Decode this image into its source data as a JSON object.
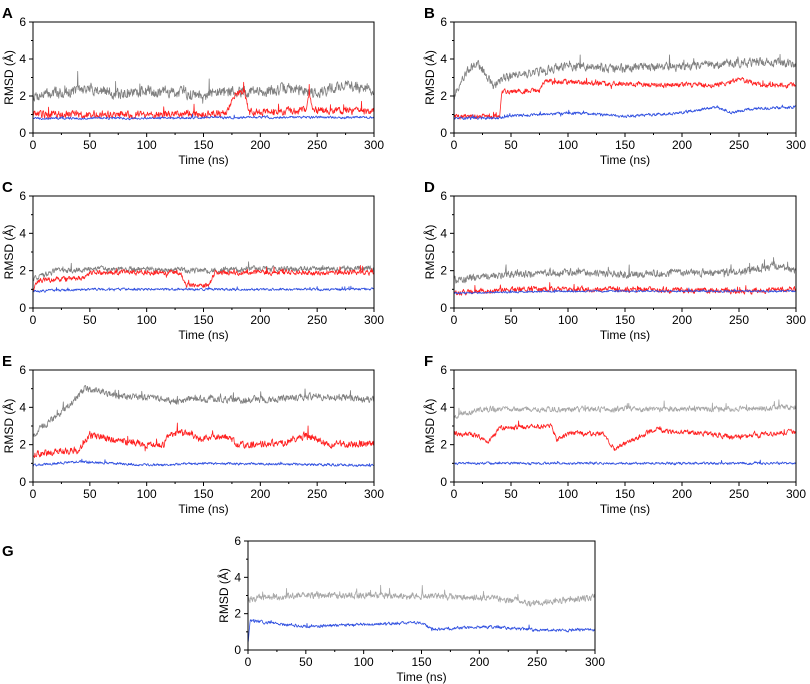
{
  "chart_data": [
    {
      "panel": "A",
      "type": "line",
      "xlabel": "Time (ns)",
      "ylabel": "RMSD (Å)",
      "xlim": [
        0,
        300
      ],
      "ylim": [
        0,
        6
      ],
      "xticks": [
        0,
        50,
        100,
        150,
        200,
        250,
        300
      ],
      "yticks": [
        0,
        2,
        4,
        6
      ],
      "series": [
        {
          "name": "gray",
          "color": "#808080",
          "points": [
            [
              0,
              2.0
            ],
            [
              25,
              2.2
            ],
            [
              50,
              2.4
            ],
            [
              75,
              2.1
            ],
            [
              100,
              2.3
            ],
            [
              125,
              2.2
            ],
            [
              150,
              2.1
            ],
            [
              175,
              2.3
            ],
            [
              200,
              2.2
            ],
            [
              225,
              2.4
            ],
            [
              250,
              2.2
            ],
            [
              275,
              2.6
            ],
            [
              300,
              2.3
            ]
          ],
          "noise": 0.45
        },
        {
          "name": "red",
          "color": "#ff2020",
          "points": [
            [
              0,
              1.0
            ],
            [
              50,
              1.0
            ],
            [
              100,
              1.0
            ],
            [
              170,
              1.05
            ],
            [
              178,
              2.2
            ],
            [
              186,
              2.2
            ],
            [
              190,
              1.1
            ],
            [
              240,
              1.2
            ],
            [
              243,
              2.3
            ],
            [
              246,
              1.2
            ],
            [
              300,
              1.2
            ]
          ],
          "noise": 0.3
        },
        {
          "name": "blue",
          "color": "#3050e0",
          "points": [
            [
              0,
              0.8
            ],
            [
              100,
              0.8
            ],
            [
              200,
              0.85
            ],
            [
              300,
              0.85
            ]
          ],
          "noise": 0.1
        }
      ]
    },
    {
      "panel": "B",
      "type": "line",
      "xlabel": "Time (ns)",
      "ylabel": "RMSD (Å)",
      "xlim": [
        0,
        300
      ],
      "ylim": [
        0,
        6
      ],
      "xticks": [
        0,
        50,
        100,
        150,
        200,
        250,
        300
      ],
      "yticks": [
        0,
        2,
        4,
        6
      ],
      "series": [
        {
          "name": "gray",
          "color": "#808080",
          "points": [
            [
              0,
              2.0
            ],
            [
              10,
              3.2
            ],
            [
              20,
              3.8
            ],
            [
              35,
              2.5
            ],
            [
              45,
              3.0
            ],
            [
              80,
              3.4
            ],
            [
              100,
              3.6
            ],
            [
              150,
              3.5
            ],
            [
              200,
              3.6
            ],
            [
              250,
              3.8
            ],
            [
              275,
              3.8
            ],
            [
              300,
              3.7
            ]
          ],
          "noise": 0.35
        },
        {
          "name": "red",
          "color": "#ff2020",
          "points": [
            [
              0,
              0.9
            ],
            [
              40,
              0.9
            ],
            [
              42,
              2.2
            ],
            [
              75,
              2.3
            ],
            [
              80,
              2.8
            ],
            [
              120,
              2.7
            ],
            [
              175,
              2.6
            ],
            [
              230,
              2.6
            ],
            [
              250,
              2.9
            ],
            [
              275,
              2.5
            ],
            [
              300,
              2.6
            ]
          ],
          "noise": 0.2
        },
        {
          "name": "blue",
          "color": "#3050e0",
          "points": [
            [
              0,
              0.8
            ],
            [
              40,
              0.8
            ],
            [
              45,
              0.9
            ],
            [
              100,
              1.1
            ],
            [
              150,
              0.9
            ],
            [
              200,
              1.1
            ],
            [
              230,
              1.4
            ],
            [
              245,
              1.1
            ],
            [
              260,
              1.3
            ],
            [
              300,
              1.4
            ]
          ],
          "noise": 0.12
        }
      ]
    },
    {
      "panel": "C",
      "type": "line",
      "xlabel": "Time (ns)",
      "ylabel": "RMSD (Å)",
      "xlim": [
        0,
        300
      ],
      "ylim": [
        0,
        6
      ],
      "xticks": [
        0,
        50,
        100,
        150,
        200,
        250,
        300
      ],
      "yticks": [
        0,
        2,
        4,
        6
      ],
      "series": [
        {
          "name": "gray",
          "color": "#808080",
          "points": [
            [
              0,
              1.5
            ],
            [
              20,
              2.0
            ],
            [
              75,
              2.1
            ],
            [
              150,
              2.0
            ],
            [
              200,
              2.1
            ],
            [
              300,
              2.1
            ]
          ],
          "noise": 0.22
        },
        {
          "name": "red",
          "color": "#ff2020",
          "points": [
            [
              0,
              1.0
            ],
            [
              5,
              1.5
            ],
            [
              45,
              1.6
            ],
            [
              50,
              1.9
            ],
            [
              130,
              1.9
            ],
            [
              135,
              1.2
            ],
            [
              155,
              1.2
            ],
            [
              160,
              1.9
            ],
            [
              300,
              1.9
            ]
          ],
          "noise": 0.2
        },
        {
          "name": "blue",
          "color": "#3050e0",
          "points": [
            [
              0,
              0.9
            ],
            [
              50,
              1.0
            ],
            [
              150,
              1.0
            ],
            [
              300,
              1.0
            ]
          ],
          "noise": 0.1
        }
      ]
    },
    {
      "panel": "D",
      "type": "line",
      "xlabel": "Time (ns)",
      "ylabel": "RMSD (Å)",
      "xlim": [
        0,
        300
      ],
      "ylim": [
        0,
        6
      ],
      "xticks": [
        0,
        50,
        100,
        150,
        200,
        250,
        300
      ],
      "yticks": [
        0,
        2,
        4,
        6
      ],
      "series": [
        {
          "name": "gray",
          "color": "#808080",
          "points": [
            [
              0,
              1.5
            ],
            [
              50,
              1.8
            ],
            [
              100,
              1.9
            ],
            [
              150,
              1.8
            ],
            [
              200,
              1.9
            ],
            [
              250,
              1.9
            ],
            [
              280,
              2.3
            ],
            [
              300,
              2.0
            ]
          ],
          "noise": 0.3
        },
        {
          "name": "red",
          "color": "#ff2020",
          "points": [
            [
              0,
              0.8
            ],
            [
              50,
              1.0
            ],
            [
              150,
              1.0
            ],
            [
              250,
              0.9
            ],
            [
              300,
              1.0
            ]
          ],
          "noise": 0.22
        },
        {
          "name": "blue",
          "color": "#3050e0",
          "points": [
            [
              0,
              0.8
            ],
            [
              100,
              0.9
            ],
            [
              200,
              0.9
            ],
            [
              300,
              0.9
            ]
          ],
          "noise": 0.08
        }
      ]
    },
    {
      "panel": "E",
      "type": "line",
      "xlabel": "Time (ns)",
      "ylabel": "RMSD (Å)",
      "xlim": [
        0,
        300
      ],
      "ylim": [
        0,
        6
      ],
      "xticks": [
        0,
        50,
        100,
        150,
        200,
        250,
        300
      ],
      "yticks": [
        0,
        2,
        4,
        6
      ],
      "series": [
        {
          "name": "gray",
          "color": "#808080",
          "points": [
            [
              0,
              2.5
            ],
            [
              20,
              3.5
            ],
            [
              35,
              4.2
            ],
            [
              45,
              5.0
            ],
            [
              70,
              4.7
            ],
            [
              100,
              4.5
            ],
            [
              130,
              4.3
            ],
            [
              140,
              4.5
            ],
            [
              200,
              4.4
            ],
            [
              250,
              4.6
            ],
            [
              300,
              4.4
            ]
          ],
          "noise": 0.28
        },
        {
          "name": "red",
          "color": "#ff2020",
          "points": [
            [
              0,
              1.5
            ],
            [
              40,
              1.7
            ],
            [
              50,
              2.5
            ],
            [
              100,
              2.0
            ],
            [
              115,
              2.0
            ],
            [
              120,
              2.6
            ],
            [
              140,
              2.6
            ],
            [
              145,
              2.3
            ],
            [
              170,
              2.5
            ],
            [
              180,
              2.0
            ],
            [
              220,
              2.1
            ],
            [
              240,
              2.5
            ],
            [
              260,
              2.0
            ],
            [
              300,
              2.1
            ]
          ],
          "noise": 0.28
        },
        {
          "name": "blue",
          "color": "#3050e0",
          "points": [
            [
              0,
              0.9
            ],
            [
              40,
              1.1
            ],
            [
              100,
              0.9
            ],
            [
              150,
              1.0
            ],
            [
              300,
              0.9
            ]
          ],
          "noise": 0.1
        }
      ]
    },
    {
      "panel": "F",
      "type": "line",
      "xlabel": "Time (ns)",
      "ylabel": "RMSD (Å)",
      "xlim": [
        0,
        300
      ],
      "ylim": [
        0,
        6
      ],
      "xticks": [
        0,
        50,
        100,
        150,
        200,
        250,
        300
      ],
      "yticks": [
        0,
        2,
        4,
        6
      ],
      "series": [
        {
          "name": "gray",
          "color": "#a8a8a8",
          "points": [
            [
              0,
              3.5
            ],
            [
              25,
              3.9
            ],
            [
              100,
              3.9
            ],
            [
              150,
              3.9
            ],
            [
              200,
              3.9
            ],
            [
              250,
              3.9
            ],
            [
              300,
              4.0
            ]
          ],
          "noise": 0.22
        },
        {
          "name": "red",
          "color": "#ff2020",
          "points": [
            [
              0,
              2.6
            ],
            [
              20,
              2.5
            ],
            [
              30,
              2.1
            ],
            [
              40,
              2.9
            ],
            [
              85,
              3.0
            ],
            [
              90,
              2.3
            ],
            [
              100,
              2.6
            ],
            [
              130,
              2.6
            ],
            [
              140,
              1.8
            ],
            [
              155,
              2.2
            ],
            [
              175,
              2.8
            ],
            [
              200,
              2.7
            ],
            [
              250,
              2.4
            ],
            [
              300,
              2.7
            ]
          ],
          "noise": 0.2
        },
        {
          "name": "blue",
          "color": "#3050e0",
          "points": [
            [
              0,
              1.0
            ],
            [
              150,
              1.0
            ],
            [
              300,
              1.0
            ]
          ],
          "noise": 0.1
        }
      ]
    },
    {
      "panel": "G",
      "type": "line",
      "xlabel": "Time (ns)",
      "ylabel": "RMSD (Å)",
      "xlim": [
        0,
        300
      ],
      "ylim": [
        0,
        6
      ],
      "xticks": [
        0,
        50,
        100,
        150,
        200,
        250,
        300
      ],
      "yticks": [
        0,
        2,
        4,
        6
      ],
      "series": [
        {
          "name": "gray",
          "color": "#a8a8a8",
          "points": [
            [
              0,
              2.8
            ],
            [
              50,
              3.0
            ],
            [
              100,
              3.0
            ],
            [
              150,
              3.0
            ],
            [
              200,
              2.9
            ],
            [
              250,
              2.6
            ],
            [
              300,
              2.9
            ]
          ],
          "noise": 0.28
        },
        {
          "name": "blue",
          "color": "#3050e0",
          "points": [
            [
              0,
              0.4
            ],
            [
              2,
              1.6
            ],
            [
              50,
              1.3
            ],
            [
              100,
              1.4
            ],
            [
              150,
              1.5
            ],
            [
              160,
              1.1
            ],
            [
              200,
              1.3
            ],
            [
              250,
              1.1
            ],
            [
              300,
              1.1
            ]
          ],
          "noise": 0.13
        }
      ]
    }
  ]
}
